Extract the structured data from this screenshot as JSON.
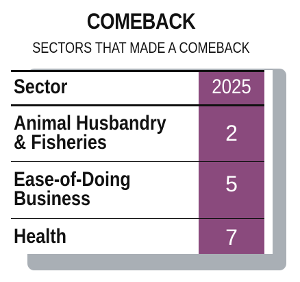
{
  "title": "COMEBACK",
  "subtitle": "SECTORS THAT MADE A COMEBACK",
  "table": {
    "header": {
      "label": "Sector",
      "value": "2025"
    },
    "rows": [
      {
        "label_line1": "Animal Husbandry",
        "label_line2": "& Fisheries",
        "value": "2"
      },
      {
        "label_line1": "Ease-of-Doing",
        "label_line2": "Business",
        "value": "5"
      },
      {
        "label_line1": "Health",
        "label_line2": "",
        "value": "7"
      }
    ]
  },
  "colors": {
    "accent_column": "#8a4a7d",
    "shadow": "#a9afb5",
    "text": "#111111"
  },
  "chart_data": {
    "type": "table",
    "title": "COMEBACK",
    "subtitle": "SECTORS THAT MADE A COMEBACK",
    "columns": [
      "Sector",
      "2025"
    ],
    "rows": [
      [
        "Animal Husbandry & Fisheries",
        2
      ],
      [
        "Ease-of-Doing Business",
        5
      ],
      [
        "Health",
        7
      ]
    ]
  }
}
